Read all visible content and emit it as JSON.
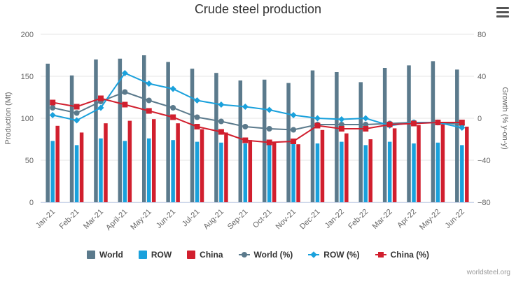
{
  "header": {
    "title": "Crude steel production"
  },
  "credit": "worldsteel.org",
  "colors": {
    "world": "#5b7a8c",
    "row": "#1aa1dc",
    "china": "#d11f2e"
  },
  "menu_icon": "hamburger-menu-icon",
  "chart_data": {
    "type": "bar",
    "title": "Crude steel production",
    "categories": [
      "Jan-21",
      "Feb-21",
      "Mar-21",
      "April-21",
      "May-21",
      "Jun-21",
      "Jul-21",
      "Aug-21",
      "Sep-21",
      "Oct-21",
      "Nov-21",
      "Dec-21",
      "Jan-22",
      "Feb-22",
      "Mar-22",
      "Apr-22",
      "May-22",
      "Jun-22"
    ],
    "ylabel": "Production (Mt)",
    "y2label": "Growth (% y-on-y)",
    "ylim": [
      0,
      200
    ],
    "y2lim": [
      -80,
      80
    ],
    "yticks": [
      "0",
      "50",
      "100",
      "150",
      "200"
    ],
    "y2ticks": [
      "−80",
      "−40",
      "0",
      "40",
      "80"
    ],
    "legend_position": "bottom",
    "series": [
      {
        "name": "World",
        "type": "bar",
        "axis": "left",
        "values": [
          165,
          151,
          170,
          171,
          175,
          167,
          159,
          154,
          145,
          146,
          142,
          157,
          155,
          143,
          160,
          163,
          168,
          158
        ]
      },
      {
        "name": "ROW",
        "type": "bar",
        "axis": "left",
        "values": [
          73,
          68,
          76,
          73,
          76,
          74,
          72,
          71,
          70,
          70,
          71,
          70,
          72,
          68,
          72,
          70,
          71,
          68
        ]
      },
      {
        "name": "China",
        "type": "bar",
        "axis": "left",
        "values": [
          91,
          83,
          94,
          97,
          99,
          94,
          87,
          83,
          74,
          72,
          69,
          86,
          82,
          75,
          88,
          92,
          93,
          90
        ]
      },
      {
        "name": "World (%)",
        "type": "line",
        "axis": "right",
        "values": [
          10,
          5,
          16,
          25,
          17,
          10,
          1,
          -3,
          -8,
          -10,
          -11,
          -6,
          -6,
          -6,
          -5,
          -4,
          -4,
          -6
        ]
      },
      {
        "name": "ROW (%)",
        "type": "line",
        "axis": "right",
        "values": [
          3,
          -2,
          10,
          43,
          33,
          28,
          17,
          13,
          11,
          8,
          3,
          0,
          -1,
          0,
          -7,
          -4,
          -4,
          -9
        ]
      },
      {
        "name": "China (%)",
        "type": "line",
        "axis": "right",
        "values": [
          15,
          11,
          19,
          13,
          7,
          1,
          -8,
          -13,
          -21,
          -23,
          -22,
          -7,
          -10,
          -10,
          -6,
          -5,
          -4,
          -4
        ]
      }
    ]
  }
}
